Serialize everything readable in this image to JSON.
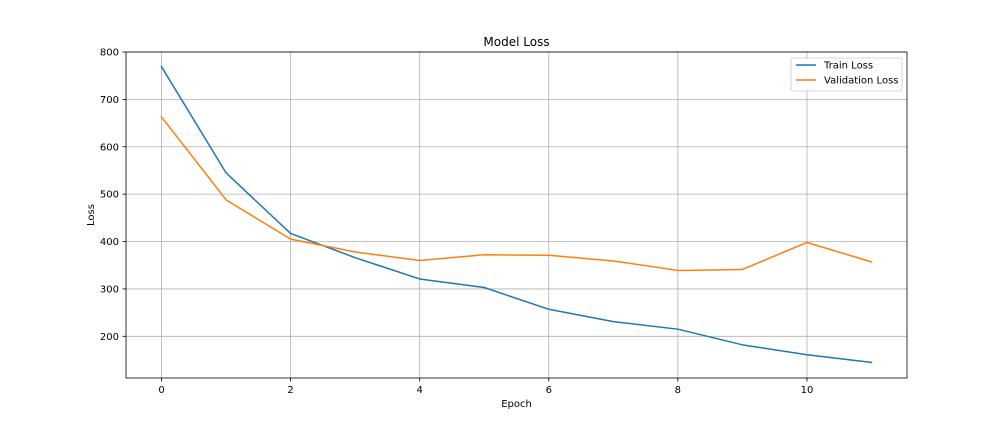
{
  "chart_data": {
    "type": "line",
    "title": "Model Loss",
    "xlabel": "Epoch",
    "ylabel": "Loss",
    "xlim": [
      -0.55,
      11.55
    ],
    "ylim": [
      112,
      800
    ],
    "xticks": [
      0,
      2,
      4,
      6,
      8,
      10
    ],
    "yticks": [
      200,
      300,
      400,
      500,
      600,
      700,
      800
    ],
    "grid": true,
    "legend_position": "top-right",
    "x": [
      0,
      1,
      2,
      3,
      4,
      5,
      6,
      7,
      8,
      9,
      10,
      11
    ],
    "series": [
      {
        "name": "Train Loss",
        "color": "#1f77b4",
        "values": [
          769,
          545,
          417,
          366,
          321,
          303,
          257,
          231,
          215,
          182,
          161,
          145
        ]
      },
      {
        "name": "Validation Loss",
        "color": "#ff7f0e",
        "values": [
          663,
          488,
          405,
          378,
          360,
          372,
          371,
          359,
          339,
          341,
          398,
          357
        ]
      }
    ]
  }
}
